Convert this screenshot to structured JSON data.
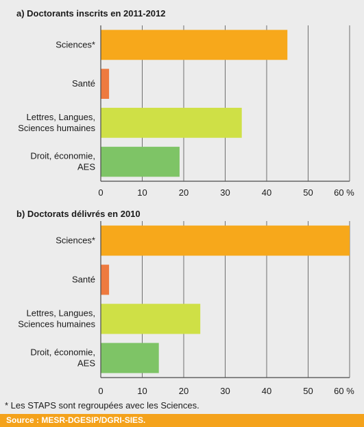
{
  "chart_data": [
    {
      "type": "bar",
      "orientation": "horizontal",
      "title": "a) Doctorants inscrits en 2011-2012",
      "categories": [
        "Sciences*",
        "Santé",
        "Lettres, Langues,\nSciences humaines",
        "Droit, économie,\nAES"
      ],
      "values": [
        45,
        2,
        34,
        19
      ],
      "colors": [
        "#f7a81b",
        "#ee7a3f",
        "#cfe046",
        "#7ec466"
      ],
      "xlim": [
        0,
        60
      ],
      "ticks": [
        "0",
        "10",
        "20",
        "30",
        "40",
        "50",
        "60 %"
      ],
      "grid": true
    },
    {
      "type": "bar",
      "orientation": "horizontal",
      "title": "b) Doctorats délivrés en 2010",
      "categories": [
        "Sciences*",
        "Santé",
        "Lettres, Langues,\nSciences humaines",
        "Droit, économie,\nAES"
      ],
      "values": [
        60,
        2,
        24,
        14
      ],
      "colors": [
        "#f7a81b",
        "#ee7a3f",
        "#cfe046",
        "#7ec466"
      ],
      "xlim": [
        0,
        60
      ],
      "ticks": [
        "0",
        "10",
        "20",
        "30",
        "40",
        "50",
        "60 %"
      ],
      "grid": true
    }
  ],
  "footnote": "* Les STAPS sont regroupées avec les Sciences.",
  "source": "Source : MESR-DGESIP/DGRI-SIES."
}
